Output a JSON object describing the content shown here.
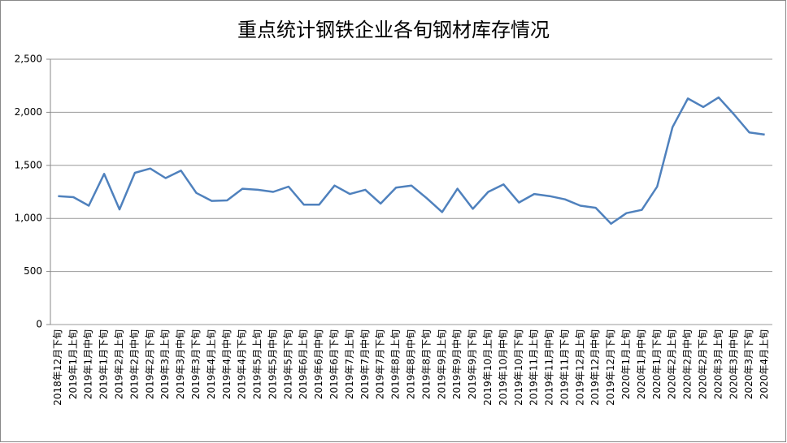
{
  "chart_data": {
    "type": "line",
    "title": "重点统计钢铁企业各旬钢材库存情况",
    "categories": [
      "2018年12月下旬",
      "2019年1月上旬",
      "2019年1月中旬",
      "2019年1月下旬",
      "2019年2月上旬",
      "2019年2月中旬",
      "2019年2月下旬",
      "2019年3月上旬",
      "2019年3月中旬",
      "2019年3月下旬",
      "2019年4月上旬",
      "2019年4月中旬",
      "2019年4月下旬",
      "2019年5月上旬",
      "2019年5月中旬",
      "2019年5月下旬",
      "2019年6月上旬",
      "2019年6月中旬",
      "2019年6月下旬",
      "2019年7月上旬",
      "2019年7月中旬",
      "2019年7月下旬",
      "2019年8月上旬",
      "2019年8月中旬",
      "2019年8月下旬",
      "2019年9月上旬",
      "2019年9月中旬",
      "2019年9月下旬",
      "2019年10月上旬",
      "2019年10月中旬",
      "2019年10月下旬",
      "2019年11月上旬",
      "2019年11月中旬",
      "2019年11月下旬",
      "2019年12月上旬",
      "2019年12月中旬",
      "2019年12月下旬",
      "2020年1月上旬",
      "2020年1月中旬",
      "2020年1月下旬",
      "2020年2月上旬",
      "2020年2月中旬",
      "2020年2月下旬",
      "2020年3月上旬",
      "2020年3月中旬",
      "2020年3月下旬",
      "2020年4月上旬"
    ],
    "values": [
      1210,
      1200,
      1120,
      1420,
      1085,
      1430,
      1470,
      1380,
      1450,
      1240,
      1165,
      1170,
      1280,
      1270,
      1250,
      1300,
      1130,
      1130,
      1310,
      1230,
      1270,
      1140,
      1290,
      1310,
      1190,
      1060,
      1280,
      1090,
      1250,
      1320,
      1150,
      1230,
      1210,
      1180,
      1120,
      1100,
      950,
      1050,
      1080,
      1300,
      1860,
      2130,
      2050,
      2140,
      1980,
      1810,
      1790
    ],
    "color": "#4f81bd",
    "ylim": [
      0,
      2500
    ],
    "yticks": [
      0,
      500,
      {
        "value": 1000,
        "label": "1,000"
      },
      {
        "value": 1500,
        "label": "1,500"
      },
      {
        "value": 2000,
        "label": "2,000"
      },
      {
        "value": 2500,
        "label": "2,500"
      }
    ],
    "grid": true
  }
}
